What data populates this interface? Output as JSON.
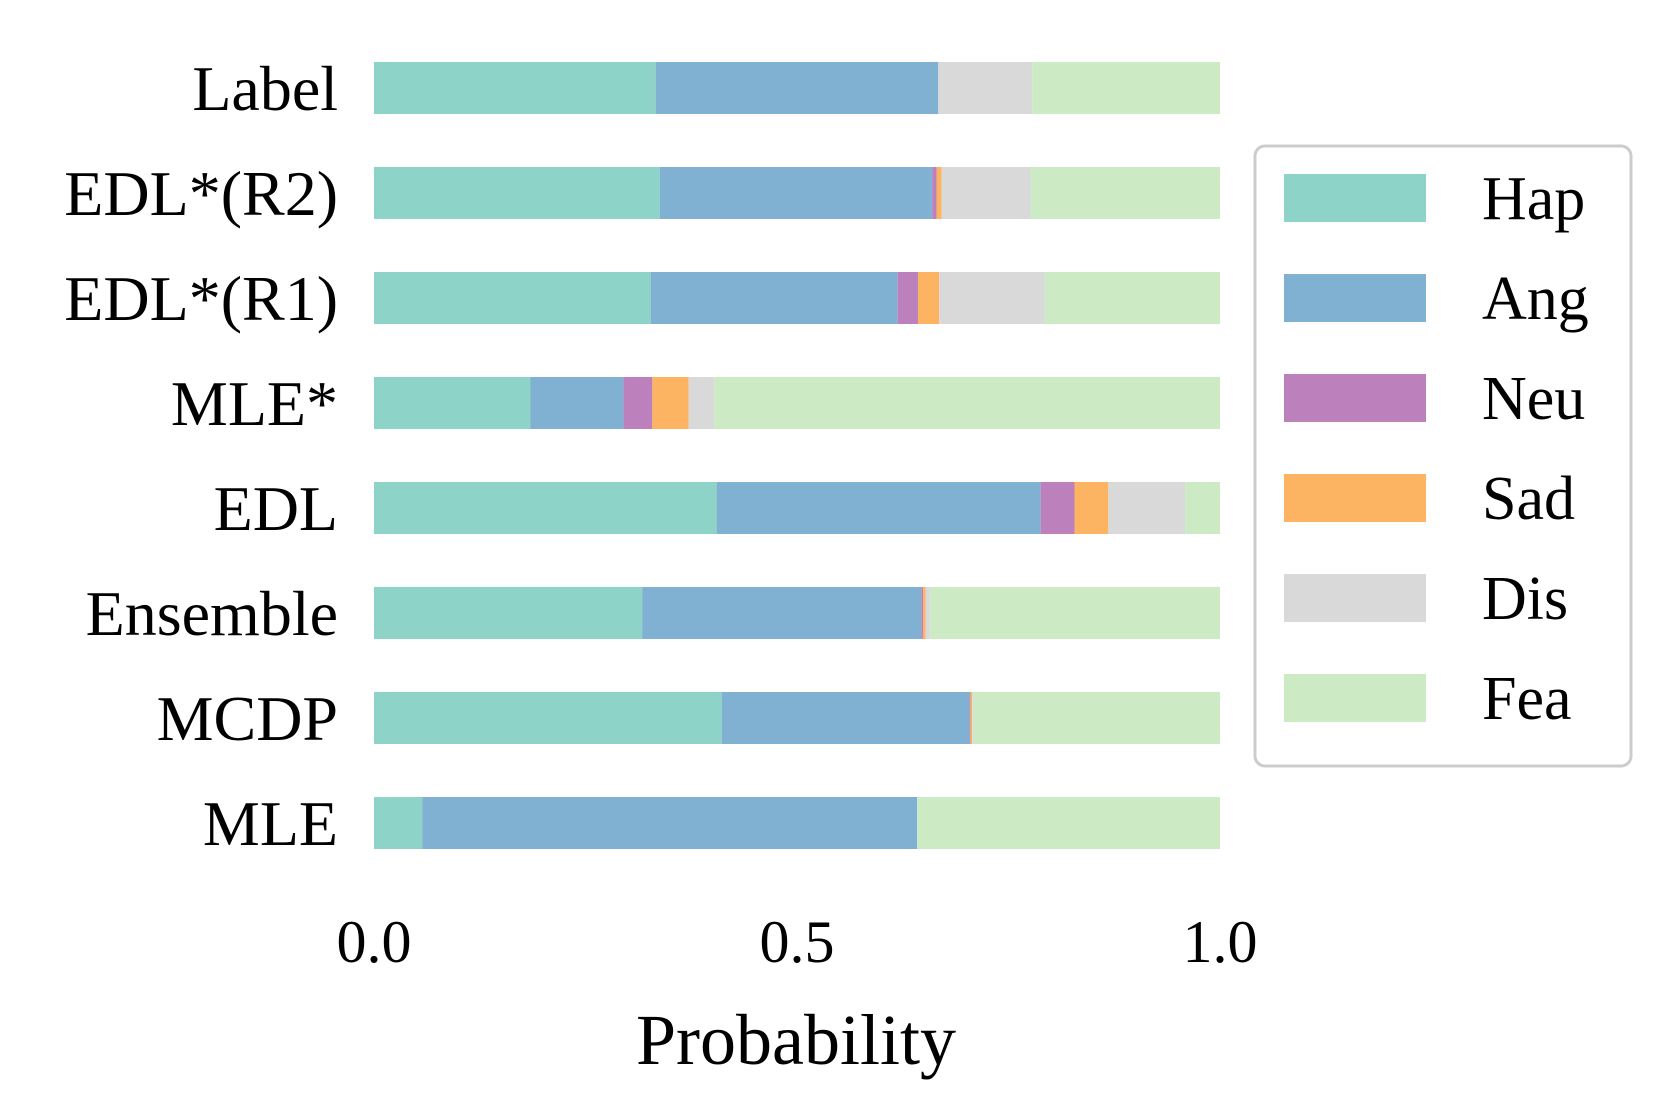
{
  "chart_data": {
    "type": "bar",
    "orientation": "horizontal",
    "stacked": true,
    "title": "",
    "xlabel": "Probability",
    "ylabel": "",
    "xlim": [
      0,
      1
    ],
    "xticks": [
      0.0,
      0.5,
      1.0
    ],
    "xtick_labels": [
      "0.0",
      "0.5",
      "1.0"
    ],
    "grid": false,
    "legend_position": "right",
    "categories": [
      "Label",
      "EDL*(R2)",
      "EDL*(R1)",
      "MLE*",
      "EDL",
      "Ensemble",
      "MCDP",
      "MLE"
    ],
    "series": [
      {
        "name": "Hap",
        "color": "#8dd3c7",
        "values": [
          0.333,
          0.338,
          0.327,
          0.185,
          0.405,
          0.317,
          0.411,
          0.057
        ]
      },
      {
        "name": "Ang",
        "color": "#80b1d3",
        "values": [
          0.334,
          0.322,
          0.292,
          0.11,
          0.383,
          0.33,
          0.293,
          0.585
        ]
      },
      {
        "name": "Neu",
        "color": "#bc80bd",
        "values": [
          0.0,
          0.005,
          0.024,
          0.034,
          0.04,
          0.002,
          0.001,
          0.0
        ]
      },
      {
        "name": "Sad",
        "color": "#fdb462",
        "values": [
          0.0,
          0.006,
          0.025,
          0.043,
          0.04,
          0.003,
          0.002,
          0.0
        ]
      },
      {
        "name": "Dis",
        "color": "#d9d9d9",
        "values": [
          0.111,
          0.105,
          0.125,
          0.03,
          0.091,
          0.005,
          0.001,
          0.0
        ]
      },
      {
        "name": "Fea",
        "color": "#ccebc5",
        "values": [
          0.222,
          0.224,
          0.207,
          0.598,
          0.041,
          0.343,
          0.292,
          0.358
        ]
      }
    ]
  }
}
